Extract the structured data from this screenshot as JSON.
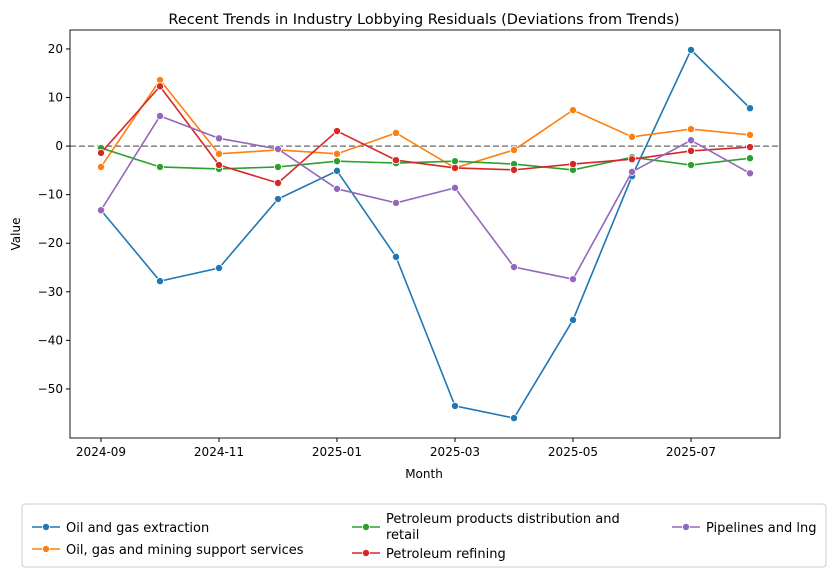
{
  "chart_data": {
    "type": "line",
    "title": "Recent Trends in Industry Lobbying Residuals (Deviations from Trends)",
    "xlabel": "Month",
    "ylabel": "Value",
    "x": [
      "2024-09",
      "2024-10",
      "2024-11",
      "2024-12",
      "2025-01",
      "2025-02",
      "2025-03",
      "2025-04",
      "2025-05",
      "2025-06",
      "2025-07",
      "2025-08"
    ],
    "xticks": [
      "2024-09",
      "2024-11",
      "2025-01",
      "2025-03",
      "2025-05",
      "2025-07"
    ],
    "yticks": [
      20,
      10,
      0,
      -10,
      -20,
      -30,
      -40,
      -50
    ],
    "ylim": [
      -60.1,
      23.9
    ],
    "reference_line": 0,
    "legend_placement": "bottom-outside",
    "series": [
      {
        "name": "Oil and gas extraction",
        "color": "#1f77b4",
        "values": [
          -13.2,
          -27.8,
          -25.1,
          -10.9,
          -5.1,
          -22.8,
          -53.5,
          -56.0,
          -35.8,
          -6.2,
          19.8,
          7.8
        ]
      },
      {
        "name": "Oil, gas and mining support services",
        "color": "#ff7f0e",
        "values": [
          -4.3,
          13.6,
          -1.6,
          -0.8,
          -1.6,
          2.7,
          -4.5,
          -0.8,
          7.4,
          1.9,
          3.5,
          2.3
        ]
      },
      {
        "name": "Petroleum products distribution and retail",
        "color": "#2ca02c",
        "values": [
          -0.4,
          -4.3,
          -4.7,
          -4.3,
          -3.1,
          -3.5,
          -3.1,
          -3.7,
          -4.9,
          -2.3,
          -3.9,
          -2.5
        ]
      },
      {
        "name": "Petroleum refining",
        "color": "#d62728",
        "values": [
          -1.4,
          12.3,
          -3.9,
          -7.6,
          3.1,
          -2.9,
          -4.5,
          -4.9,
          -3.7,
          -2.7,
          -1.0,
          -0.2
        ]
      },
      {
        "name": "Pipelines and lng",
        "color": "#9467bd",
        "values": [
          -13.2,
          6.2,
          1.6,
          -0.6,
          -8.8,
          -11.7,
          -8.6,
          -24.9,
          -27.4,
          -5.3,
          1.2,
          -5.6
        ]
      }
    ]
  }
}
